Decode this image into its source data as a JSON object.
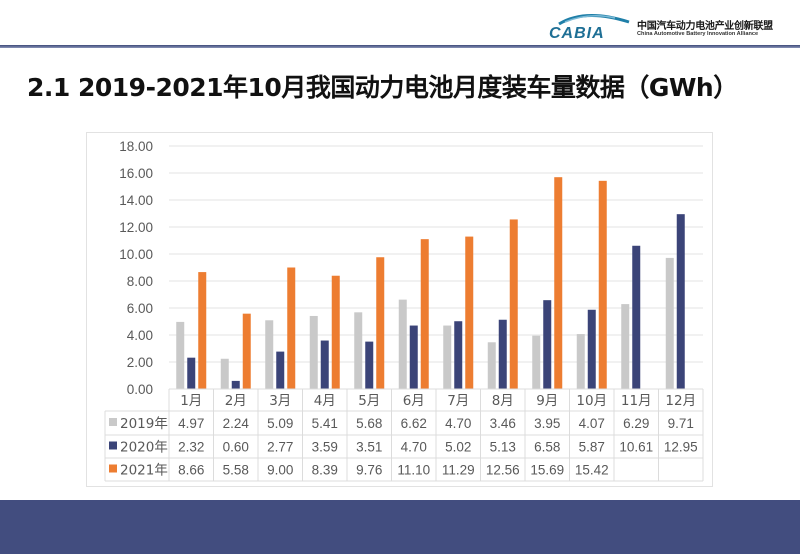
{
  "header": {
    "logo_mark_text": "CABIA",
    "logo_cn": "中国汽车动力电池产业创新联盟",
    "logo_en": "China Automotive Battery Innovation Alliance"
  },
  "page_title": "2.1 2019-2021年10月我国动力电池月度装车量数据（GWh）",
  "colors": {
    "series_2019": "#c9c9c9",
    "series_2020": "#3b4478",
    "series_2021": "#ed7d31",
    "gridline": "#e3e3e3",
    "footer": "#424d7f"
  },
  "chart_data": {
    "type": "bar",
    "title": "",
    "xlabel": "",
    "ylabel": "",
    "unit": "GWh",
    "ylim": [
      0,
      18
    ],
    "yticks": [
      "0.00",
      "2.00",
      "4.00",
      "6.00",
      "8.00",
      "10.00",
      "12.00",
      "14.00",
      "16.00",
      "18.00"
    ],
    "ytick_values": [
      0,
      2,
      4,
      6,
      8,
      10,
      12,
      14,
      16,
      18
    ],
    "grid": true,
    "legend": "data-table",
    "categories": [
      "1月",
      "2月",
      "3月",
      "4月",
      "5月",
      "6月",
      "7月",
      "8月",
      "9月",
      "10月",
      "11月",
      "12月"
    ],
    "series": [
      {
        "name": "2019年",
        "values": [
          4.97,
          2.24,
          5.09,
          5.41,
          5.68,
          6.62,
          4.7,
          3.46,
          3.95,
          4.07,
          6.29,
          9.71
        ],
        "labels": [
          "4.97",
          "2.24",
          "5.09",
          "5.41",
          "5.68",
          "6.62",
          "4.70",
          "3.46",
          "3.95",
          "4.07",
          "6.29",
          "9.71"
        ]
      },
      {
        "name": "2020年",
        "values": [
          2.32,
          0.6,
          2.77,
          3.59,
          3.51,
          4.7,
          5.02,
          5.13,
          6.58,
          5.87,
          10.61,
          12.95
        ],
        "labels": [
          "2.32",
          "0.60",
          "2.77",
          "3.59",
          "3.51",
          "4.70",
          "5.02",
          "5.13",
          "6.58",
          "5.87",
          "10.61",
          "12.95"
        ]
      },
      {
        "name": "2021年",
        "values": [
          8.66,
          5.58,
          9.0,
          8.39,
          9.76,
          11.1,
          11.29,
          12.56,
          15.69,
          15.42,
          null,
          null
        ],
        "labels": [
          "8.66",
          "5.58",
          "9.00",
          "8.39",
          "9.76",
          "11.10",
          "11.29",
          "12.56",
          "15.69",
          "15.42",
          "",
          ""
        ]
      }
    ]
  }
}
